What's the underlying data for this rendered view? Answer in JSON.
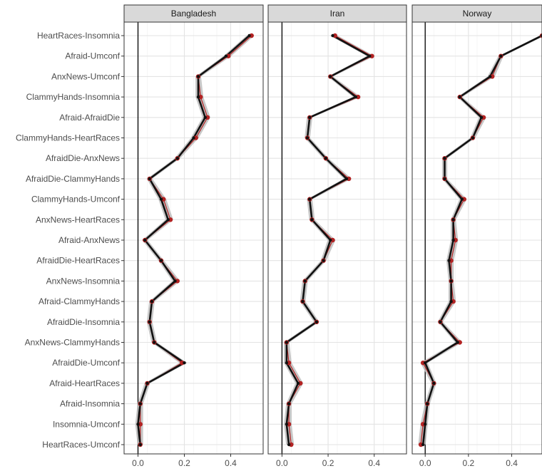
{
  "chart_data": {
    "type": "line",
    "layout": "facets",
    "rows": [
      "HeartRaces-Insomnia",
      "Afraid-Umconf",
      "AnxNews-Umconf",
      "ClammyHands-Insomnia",
      "Afraid-AfraidDie",
      "ClammyHands-HeartRaces",
      "AfraidDie-AnxNews",
      "AfraidDie-ClammyHands",
      "ClammyHands-Umconf",
      "AnxNews-HeartRaces",
      "Afraid-AnxNews",
      "AfraidDie-HeartRaces",
      "AnxNews-Insomnia",
      "Afraid-ClammyHands",
      "AfraidDie-Insomnia",
      "AnxNews-ClammyHands",
      "AfraidDie-Umconf",
      "Afraid-HeartRaces",
      "Afraid-Insomnia",
      "Insomnia-Umconf",
      "HeartRaces-Umconf"
    ],
    "xlim": [
      -0.06,
      0.54
    ],
    "xticks": [
      0.0,
      0.2,
      0.4
    ],
    "xtick_labels": [
      "0.0",
      "0.2",
      "0.4"
    ],
    "grid": true,
    "colors": {
      "line": "#111111",
      "band": "#bdbdbd",
      "points": "#b22222",
      "strip_bg": "#d9d9d9",
      "zero_line": "#000000"
    },
    "facets": [
      {
        "name": "Bangladesh",
        "black": [
          0.48,
          0.38,
          0.26,
          0.26,
          0.29,
          0.24,
          0.17,
          0.05,
          0.1,
          0.13,
          0.03,
          0.1,
          0.16,
          0.06,
          0.05,
          0.07,
          0.2,
          0.04,
          0.01,
          0.0,
          0.01
        ],
        "red": [
          0.49,
          0.39,
          0.26,
          0.27,
          0.3,
          0.25,
          0.17,
          0.05,
          0.11,
          0.14,
          0.03,
          0.1,
          0.17,
          0.06,
          0.05,
          0.07,
          0.19,
          0.04,
          0.01,
          0.01,
          0.01
        ]
      },
      {
        "name": "Iran",
        "black": [
          0.22,
          0.38,
          0.21,
          0.32,
          0.12,
          0.11,
          0.19,
          0.28,
          0.12,
          0.13,
          0.21,
          0.18,
          0.1,
          0.09,
          0.15,
          0.02,
          0.02,
          0.07,
          0.03,
          0.02,
          0.03
        ],
        "red": [
          0.23,
          0.39,
          0.21,
          0.33,
          0.12,
          0.11,
          0.19,
          0.29,
          0.12,
          0.13,
          0.22,
          0.18,
          0.1,
          0.09,
          0.15,
          0.02,
          0.03,
          0.08,
          0.03,
          0.03,
          0.04
        ]
      },
      {
        "name": "Norway",
        "black": [
          0.54,
          0.35,
          0.3,
          0.16,
          0.26,
          0.22,
          0.09,
          0.09,
          0.17,
          0.13,
          0.13,
          0.11,
          0.12,
          0.12,
          0.07,
          0.15,
          0.0,
          0.04,
          0.01,
          0.0,
          -0.01
        ],
        "red": [
          0.54,
          0.35,
          0.31,
          0.16,
          0.27,
          0.22,
          0.09,
          0.09,
          0.18,
          0.13,
          0.14,
          0.12,
          0.12,
          0.13,
          0.07,
          0.16,
          -0.01,
          0.04,
          0.01,
          -0.01,
          -0.02
        ]
      }
    ]
  }
}
